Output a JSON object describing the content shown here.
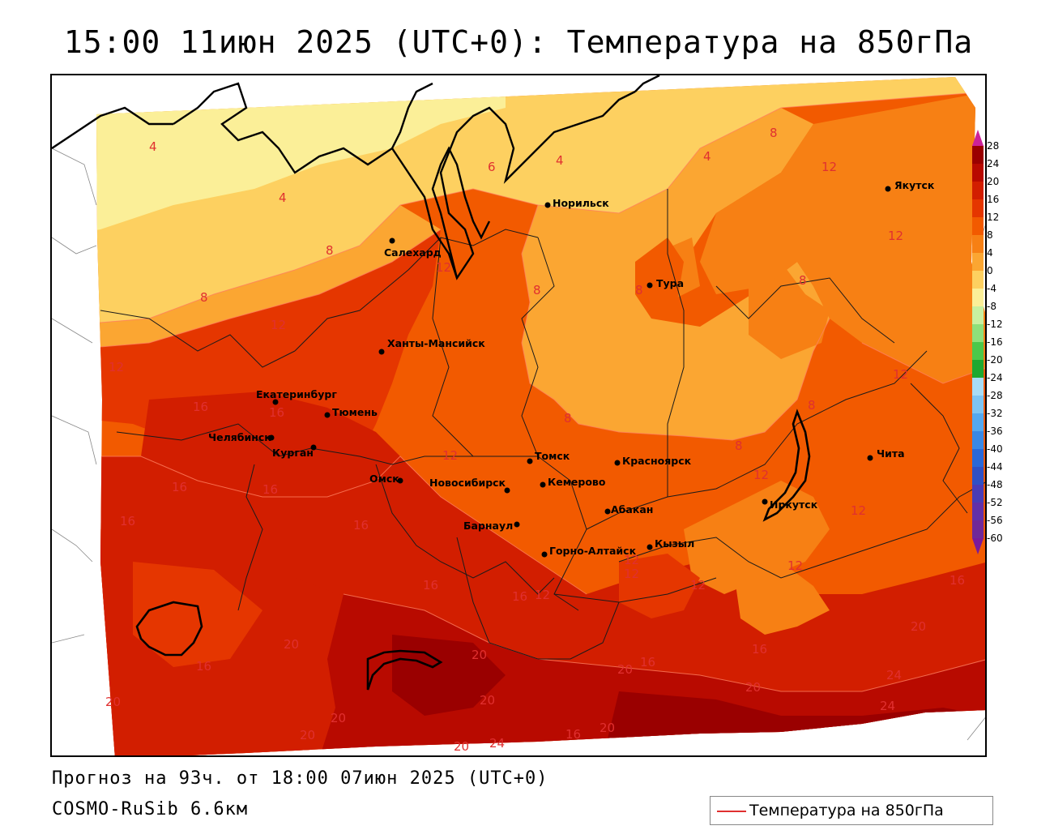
{
  "title": "15:00 11июн 2025 (UTC+0): Температура на 850гПа",
  "footer": {
    "forecast": "Прогноз на 93ч. от 18:00 07июн 2025 (UTC+0)",
    "model": "COSMO-RuSib 6.6км"
  },
  "legend": {
    "label": "Температура на 850гПа",
    "line_color": "#e03030"
  },
  "scale": {
    "ticks": [
      "28",
      "24",
      "20",
      "16",
      "12",
      "8",
      "4",
      "0",
      "-4",
      "-8",
      "-12",
      "-16",
      "-20",
      "-24",
      "-28",
      "-32",
      "-36",
      "-40",
      "-44",
      "-48",
      "-52",
      "-56",
      "-60"
    ],
    "colors": [
      "#9a0000",
      "#b80a00",
      "#d21e00",
      "#e53600",
      "#f25a00",
      "#f78014",
      "#fba632",
      "#fdd060",
      "#fbef98",
      "#c8f0a0",
      "#8ee07a",
      "#4cc84a",
      "#1ea830",
      "#a8dcf6",
      "#7ec4f2",
      "#55a8ee",
      "#3a88e4",
      "#2a68d8",
      "#3050c4",
      "#4a3cb6",
      "#6230a8",
      "#702898"
    ],
    "top_arrow_color": "#cc2299",
    "bottom_arrow_color": "#7a1a9a"
  },
  "cities": [
    {
      "name": "Салехард"
    },
    {
      "name": "Норильск"
    },
    {
      "name": "Якутск"
    },
    {
      "name": "Тура"
    },
    {
      "name": "Ханты-Мансийск"
    },
    {
      "name": "Екатеринбург"
    },
    {
      "name": "Тюмень"
    },
    {
      "name": "Челябинск"
    },
    {
      "name": "Курган"
    },
    {
      "name": "Омск"
    },
    {
      "name": "Томск"
    },
    {
      "name": "Новосибирск"
    },
    {
      "name": "Кемерово"
    },
    {
      "name": "Красноярск"
    },
    {
      "name": "Барнаул"
    },
    {
      "name": "Абакан"
    },
    {
      "name": "Кызыл"
    },
    {
      "name": "Горно-Алтайск"
    },
    {
      "name": "Иркутск"
    },
    {
      "name": "Чита"
    }
  ],
  "contour_labels": [
    "4",
    "4",
    "4",
    "4",
    "6",
    "8",
    "8",
    "8",
    "8",
    "8",
    "8",
    "8",
    "8",
    "8",
    "12",
    "12",
    "12",
    "12",
    "12",
    "12",
    "12",
    "12",
    "12",
    "12",
    "12",
    "12",
    "12",
    "12",
    "16",
    "16",
    "16",
    "16",
    "16",
    "16",
    "16",
    "16",
    "16",
    "16",
    "16",
    "16",
    "16",
    "20",
    "20",
    "20",
    "20",
    "20",
    "20",
    "20",
    "20",
    "20",
    "20",
    "20",
    "24",
    "24",
    "24"
  ]
}
